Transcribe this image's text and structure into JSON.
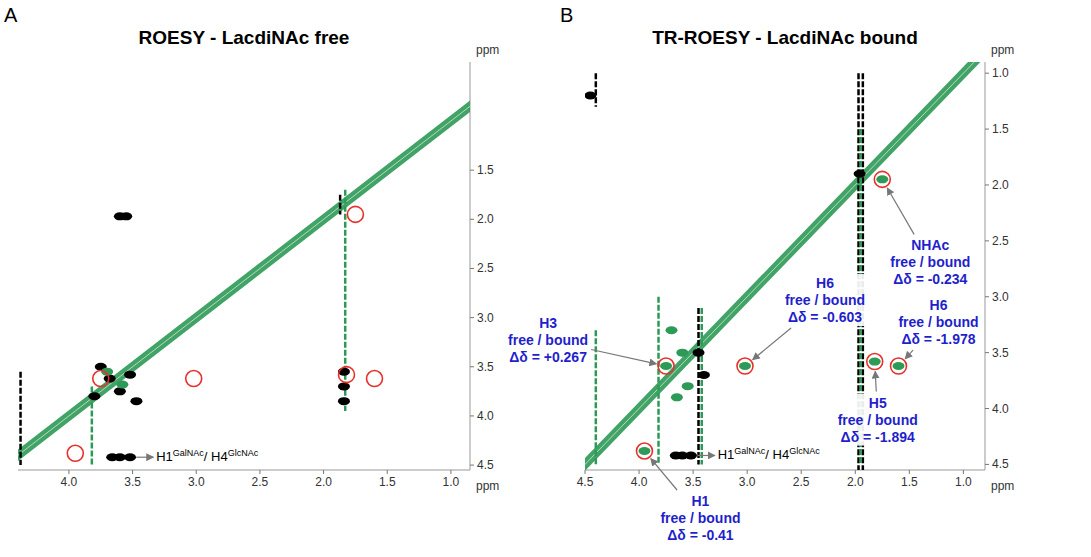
{
  "chart_data": [
    {
      "type": "scatter",
      "panel_label": "A",
      "title": "ROESY - LacdiNAc free",
      "x_label": "ppm",
      "y_label": "ppm",
      "xlim": [
        4.4,
        0.85
      ],
      "ylim": [
        0.4,
        4.55
      ],
      "xticks": [
        {
          "value": 4.0,
          "label": "4.0"
        },
        3.5,
        {
          "value": 3.0,
          "label": "3.0"
        },
        2.5,
        {
          "value": 2.0,
          "label": "2.0"
        },
        1.5,
        {
          "value": 1.0,
          "label": "1.0"
        }
      ],
      "yticks": [
        1.5,
        {
          "value": 2.0,
          "label": "2.0"
        },
        2.5,
        {
          "value": 3.0,
          "label": "3.0"
        },
        3.5,
        {
          "value": 4.0,
          "label": "4.0"
        },
        4.5
      ],
      "peaks": [
        {
          "x": 3.6,
          "y": 1.97,
          "color": "#000000"
        },
        {
          "x": 3.55,
          "y": 1.97,
          "color": "#000000"
        },
        {
          "x": 1.84,
          "y": 3.55,
          "color": "#000000"
        },
        {
          "x": 1.84,
          "y": 3.7,
          "color": "#000000"
        },
        {
          "x": 1.84,
          "y": 3.85,
          "color": "#000000"
        },
        {
          "x": 3.75,
          "y": 3.5,
          "color": "#000000"
        },
        {
          "x": 3.68,
          "y": 3.62,
          "color": "#000000"
        },
        {
          "x": 3.6,
          "y": 3.75,
          "color": "#000000"
        },
        {
          "x": 3.52,
          "y": 3.58,
          "color": "#000000"
        },
        {
          "x": 3.47,
          "y": 3.85,
          "color": "#000000"
        },
        {
          "x": 3.8,
          "y": 3.8,
          "color": "#000000"
        },
        {
          "x": 3.7,
          "y": 3.55,
          "color": "#2e9a57"
        },
        {
          "x": 3.58,
          "y": 3.68,
          "color": "#2e9a57"
        },
        {
          "x": 3.66,
          "y": 4.42,
          "color": "#000000"
        },
        {
          "x": 3.6,
          "y": 4.42,
          "color": "#000000"
        },
        {
          "x": 3.52,
          "y": 4.42,
          "color": "#000000"
        }
      ],
      "streaks": [
        {
          "x": 4.38,
          "from": 3.55,
          "to": 4.5,
          "color": "#000000"
        },
        {
          "x": 3.82,
          "from": 3.7,
          "to": 4.5,
          "color": "#2e9a57"
        },
        {
          "x": 1.83,
          "from": 1.7,
          "to": 3.95,
          "color": "#2e9a57"
        },
        {
          "x": 1.87,
          "from": 1.75,
          "to": 1.95,
          "color": "#000000"
        }
      ],
      "circles": [
        {
          "x": 3.75,
          "y": 3.62
        },
        {
          "x": 3.02,
          "y": 3.62
        },
        {
          "x": 1.75,
          "y": 1.95
        },
        {
          "x": 1.82,
          "y": 3.58
        },
        {
          "x": 1.6,
          "y": 3.62
        },
        {
          "x": 3.95,
          "y": 4.38
        }
      ],
      "annotations": [
        {
          "label_parts": [
            [
              "H1",
              "GalNAc"
            ],
            [
              "/ H4",
              "GlcNAc"
            ]
          ],
          "x": 3.55,
          "y": 4.42
        }
      ]
    },
    {
      "type": "scatter",
      "panel_label": "B",
      "title": "TR-ROESY - LacdiNAc bound",
      "x_label": "ppm",
      "y_label": "ppm",
      "xlim": [
        4.5,
        0.8
      ],
      "ylim": [
        0.9,
        4.55
      ],
      "xticks": [
        4.5,
        {
          "value": 4.0,
          "label": "4.0"
        },
        3.5,
        {
          "value": 3.0,
          "label": "3.0"
        },
        2.5,
        {
          "value": 2.0,
          "label": "2.0"
        },
        1.5,
        {
          "value": 1.0,
          "label": "1.0"
        }
      ],
      "yticks": [
        {
          "value": 1.0,
          "label": "1.0"
        },
        1.5,
        {
          "value": 2.0,
          "label": "2.0"
        },
        2.5,
        {
          "value": 3.0,
          "label": "3.0"
        },
        3.5,
        {
          "value": 4.0,
          "label": "4.0"
        },
        4.5
      ],
      "peaks": [
        {
          "x": 3.75,
          "y": 3.62,
          "color": "#2e9a57"
        },
        {
          "x": 3.02,
          "y": 3.62,
          "color": "#2e9a57"
        },
        {
          "x": 1.75,
          "y": 1.95,
          "color": "#2e9a57"
        },
        {
          "x": 1.82,
          "y": 3.58,
          "color": "#2e9a57"
        },
        {
          "x": 1.6,
          "y": 3.62,
          "color": "#2e9a57"
        },
        {
          "x": 3.95,
          "y": 4.38,
          "color": "#2e9a57"
        },
        {
          "x": 3.7,
          "y": 3.3,
          "color": "#2e9a57"
        },
        {
          "x": 3.6,
          "y": 3.5,
          "color": "#2e9a57"
        },
        {
          "x": 3.55,
          "y": 3.8,
          "color": "#2e9a57"
        },
        {
          "x": 3.65,
          "y": 3.9,
          "color": "#2e9a57"
        },
        {
          "x": 3.45,
          "y": 3.5,
          "color": "#000000"
        },
        {
          "x": 3.4,
          "y": 3.7,
          "color": "#000000"
        },
        {
          "x": 3.66,
          "y": 4.42,
          "color": "#000000"
        },
        {
          "x": 3.6,
          "y": 4.42,
          "color": "#000000"
        },
        {
          "x": 3.52,
          "y": 4.42,
          "color": "#000000"
        },
        {
          "x": 4.45,
          "y": 1.2,
          "color": "#000000"
        },
        {
          "x": 1.96,
          "y": 1.9,
          "color": "#000000"
        }
      ],
      "streaks": [
        {
          "x": 4.4,
          "from": 1.0,
          "to": 1.3,
          "color": "#000000"
        },
        {
          "x": 4.4,
          "from": 3.3,
          "to": 4.5,
          "color": "#2e9a57"
        },
        {
          "x": 3.82,
          "from": 3.0,
          "to": 4.5,
          "color": "#2e9a57"
        },
        {
          "x": 3.45,
          "from": 3.1,
          "to": 4.5,
          "color": "#000000"
        },
        {
          "x": 3.42,
          "from": 3.1,
          "to": 4.5,
          "color": "#2e9a57"
        },
        {
          "x": 1.97,
          "from": 1.0,
          "to": 4.55,
          "color": "#000000"
        },
        {
          "x": 1.93,
          "from": 1.0,
          "to": 4.55,
          "color": "#000000"
        },
        {
          "x": 1.95,
          "from": 1.5,
          "to": 4.5,
          "color": "#2e9a57"
        }
      ],
      "annotations": [
        {
          "label": "H3",
          "sublabel": "free / bound",
          "delta": "Δδ = +0.267",
          "x": 3.75,
          "y": 3.62
        },
        {
          "label": "H6",
          "sublabel": "free / bound",
          "delta": "Δδ = -0.603",
          "x": 3.02,
          "y": 3.62
        },
        {
          "label": "NHAc",
          "sublabel": "free / bound",
          "delta": "Δδ = -0.234",
          "x": 1.75,
          "y": 1.95
        },
        {
          "label": "H6",
          "sublabel": "free / bound",
          "delta": "Δδ = -1.978",
          "x": 1.6,
          "y": 3.62
        },
        {
          "label": "H5",
          "sublabel": "free / bound",
          "delta": "Δδ = -1.894",
          "x": 1.82,
          "y": 3.58
        },
        {
          "label": "H1",
          "sublabel": "free / bound",
          "delta": "Δδ = -0.41",
          "x": 3.95,
          "y": 4.38
        },
        {
          "label_parts": [
            [
              "H1",
              "GalNAc"
            ],
            [
              "/ H4",
              "GlcNAc"
            ]
          ],
          "x": 3.55,
          "y": 4.42
        }
      ]
    }
  ]
}
